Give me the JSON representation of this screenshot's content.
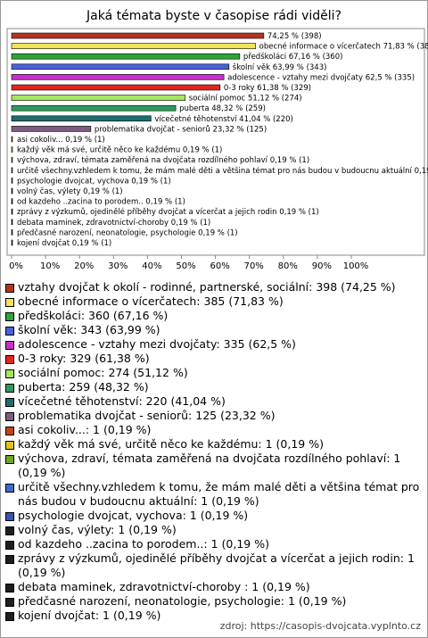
{
  "chart_data": {
    "type": "bar",
    "title": "Jaká témata byste v časopise rádi viděli?",
    "categories": [
      null,
      "obecné informace o vícerčatech",
      "předškoláci",
      "školní věk",
      "adolescence - vztahy mezi dvojčaty",
      "0-3 roky",
      "sociální pomoc",
      "puberta",
      "vícečetné těhotenství",
      "problematika dvojčat - seniorů",
      "asi cokoliv...",
      "každý věk má své, určitě něco ke každému",
      "výchova, zdraví, témata zaměřená na dvojčata rozdílného pohlaví",
      "určitě všechny.vzhledem k tomu, že mám malé děti a většina témat pro nás budou v budoucnu aktuální",
      "psychologie dvojcat, vychova",
      "volný čas, výlety",
      "od kazdeho ..zacina to porodem..",
      "zprávy z výzkumů, ojedinělé příběhy dvojčat a vícerčat a jejich rodin",
      "debata maminek, zdravotnictví-choroby",
      "předčasné narození, neonatologie, psychologie",
      "kojení dvojčat"
    ],
    "values": [
      74.25,
      71.83,
      67.16,
      63.99,
      62.5,
      61.38,
      51.12,
      48.32,
      41.04,
      23.32,
      0.19,
      0.19,
      0.19,
      0.19,
      0.19,
      0.19,
      0.19,
      0.19,
      0.19,
      0.19,
      0.19
    ],
    "value_labels": [
      "74,25 % (398)",
      "71,83 % (385)",
      "67,16 % (360)",
      "63,99 % (343)",
      "62,5 % (335)",
      "61,38 % (329)",
      "51,12 % (274)",
      "48,32 % (259)",
      "41,04 % (220)",
      "23,32 % (125)",
      "0,19 % (1)",
      "0,19 % (1)",
      "0,19 % (1)",
      "0,19 % (1)",
      "0,19 % (1)",
      "0,19 % (1)",
      "0,19 % (1)",
      "0,19 % (1)",
      "0,19 % (1)",
      "0,19 % (1)",
      "0,19 % (1)"
    ],
    "colors": [
      "#b8321e",
      "#f2e35a",
      "#2ea33a",
      "#4a62d8",
      "#c432c8",
      "#e0261e",
      "#a6e462",
      "#2f9a5e",
      "#1f6b6e",
      "#7e5c80",
      "#c2451a",
      "#e0c224",
      "#6ea626",
      "#3e6cc4",
      "#3552b4",
      "#1e1e1e",
      "#1e1e1e",
      "#1e1e1e",
      "#1e1e1e",
      "#1e1e1e",
      "#1e1e1e"
    ],
    "xlim": [
      0,
      100
    ],
    "xticks": [
      {
        "value": 0,
        "label": "0%"
      },
      {
        "value": 10,
        "label": "10%"
      },
      {
        "value": 20,
        "label": "20%"
      },
      {
        "value": 30,
        "label": "30%"
      },
      {
        "value": 40,
        "label": "40%"
      },
      {
        "value": 50,
        "label": "50%"
      },
      {
        "value": 60,
        "label": "60%"
      },
      {
        "value": 70,
        "label": "70%"
      },
      {
        "value": 80,
        "label": "80%"
      },
      {
        "value": 90,
        "label": "90%"
      },
      {
        "value": 100,
        "label": "100%"
      }
    ],
    "legend_labels": [
      "vztahy dvojčat k okolí - rodinné, partnerské, sociální: 398 (74,25 %)",
      "obecné informace o vícerčatech: 385 (71,83 %)",
      "předškoláci: 360 (67,16 %)",
      "školní věk: 343 (63,99 %)",
      "adolescence - vztahy mezi dvojčaty: 335 (62,5 %)",
      "0-3 roky: 329 (61,38 %)",
      "sociální pomoc: 274 (51,12 %)",
      "puberta: 259 (48,32 %)",
      "vícečetné těhotenství: 220 (41,04 %)",
      "problematika dvojčat - seniorů: 125 (23,32 %)",
      "asi cokoliv...: 1 (0,19 %)",
      "každý věk má své, určitě něco ke každému: 1 (0,19 %)",
      "výchova, zdraví, témata zaměřená na dvojčata rozdílného pohlaví: 1 (0,19 %)",
      "určitě všechny.vzhledem k tomu, že mám malé děti a většina témat pro nás budou v budoucnu aktuální: 1 (0,19 %)",
      "psychologie dvojcat, vychova: 1 (0,19 %)",
      "volný čas, výlety: 1 (0,19 %)",
      "od kazdeho ..zacina to porodem..: 1 (0,19 %)",
      "zprávy z výzkumů, ojedinělé příběhy dvojčat a vícerčat a jejich rodin: 1 (0,19 %)",
      "debata maminek, zdravotnictví-choroby : 1 (0,19 %)",
      "předčasné narození, neonatologie, psychologie: 1 (0,19 %)",
      "kojení dvojčat: 1 (0,19 %)"
    ],
    "source": "zdroj: https://casopis-dvojcata.vyplnto.cz"
  }
}
